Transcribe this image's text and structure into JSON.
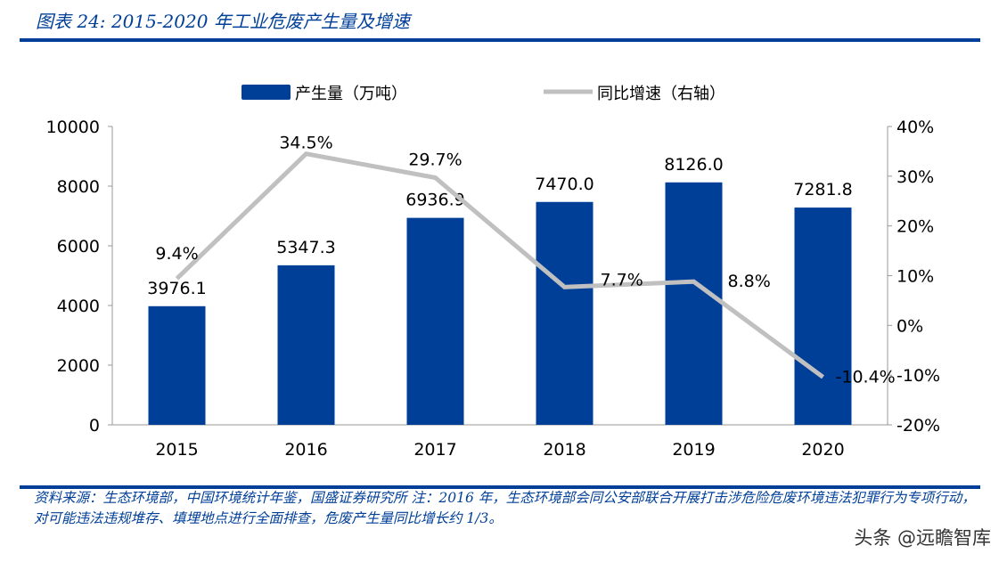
{
  "header": {
    "title": "图表 24:  2015-2020 年工业危废产生量及增速"
  },
  "footer": {
    "note": "资料来源：生态环境部，中国环境统计年鉴，国盛证券研究所 注：2016 年，生态环境部会同公安部联合开展打击涉危险危废环境违法犯罪行为专项行动，对可能违法违规堆存、填埋地点进行全面排查，危废产生量同比增长约 1/3。",
    "watermark": "头条 @远瞻智库"
  },
  "chart_data": {
    "type": "bar+line",
    "categories": [
      "2015",
      "2016",
      "2017",
      "2018",
      "2019",
      "2020"
    ],
    "series": [
      {
        "name": "产生量（万吨）",
        "type": "bar",
        "axis": "left",
        "values": [
          3976.1,
          5347.3,
          6936.9,
          7470.0,
          8126.0,
          7281.8
        ],
        "labels": [
          "3976.1",
          "5347.3",
          "6936.9",
          "7470.0",
          "8126.0",
          "7281.8"
        ],
        "color": "#003f98"
      },
      {
        "name": "同比增速（右轴）",
        "type": "line",
        "axis": "right",
        "values": [
          9.4,
          34.5,
          29.7,
          7.7,
          8.8,
          -10.4
        ],
        "labels": [
          "9.4%",
          "34.5%",
          "29.7%",
          "7.7%",
          "8.8%",
          "-10.4%"
        ],
        "color": "#c0c0c0"
      }
    ],
    "left_axis": {
      "range": [
        0,
        10000
      ],
      "ticks": [
        "0",
        "2000",
        "4000",
        "6000",
        "8000",
        "10000"
      ]
    },
    "right_axis": {
      "range": [
        -20,
        40
      ],
      "ticks": [
        "-20%",
        "-10%",
        "0%",
        "10%",
        "20%",
        "30%",
        "40%"
      ]
    },
    "legend": "top",
    "grid": false
  }
}
